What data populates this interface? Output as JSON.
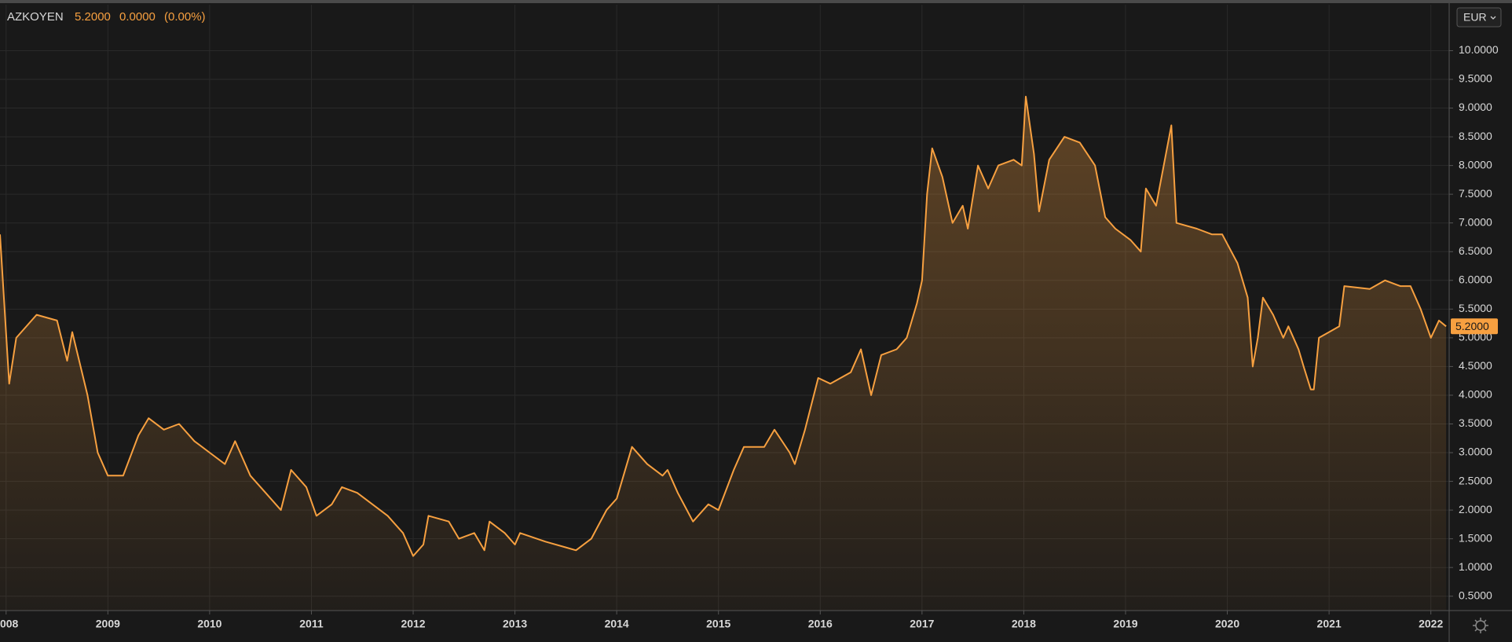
{
  "header": {
    "symbol": "AZKOYEN",
    "price": "5.2000",
    "change": "0.0000",
    "change_pct": "(0.00%)",
    "currency": "EUR"
  },
  "chart_data": {
    "type": "area",
    "color": "#f7a040",
    "grid": true,
    "x": [
      2007.94,
      2008.03,
      2008.1,
      2008.3,
      2008.5,
      2008.6,
      2008.65,
      2008.8,
      2008.9,
      2009.0,
      2009.15,
      2009.3,
      2009.4,
      2009.55,
      2009.7,
      2009.85,
      2010.0,
      2010.15,
      2010.25,
      2010.4,
      2010.55,
      2010.7,
      2010.8,
      2010.95,
      2011.05,
      2011.2,
      2011.3,
      2011.45,
      2011.6,
      2011.75,
      2011.9,
      2012.0,
      2012.1,
      2012.15,
      2012.35,
      2012.45,
      2012.6,
      2012.7,
      2012.75,
      2012.9,
      2013.0,
      2013.05,
      2013.3,
      2013.5,
      2013.6,
      2013.75,
      2013.9,
      2014.0,
      2014.15,
      2014.3,
      2014.45,
      2014.5,
      2014.6,
      2014.75,
      2014.9,
      2015.0,
      2015.15,
      2015.25,
      2015.45,
      2015.55,
      2015.7,
      2015.75,
      2015.85,
      2015.98,
      2016.1,
      2016.3,
      2016.4,
      2016.5,
      2016.6,
      2016.75,
      2016.85,
      2016.95,
      2017.0,
      2017.05,
      2017.1,
      2017.2,
      2017.3,
      2017.4,
      2017.45,
      2017.55,
      2017.65,
      2017.75,
      2017.9,
      2017.98,
      2018.02,
      2018.1,
      2018.15,
      2018.25,
      2018.4,
      2018.55,
      2018.7,
      2018.8,
      2018.9,
      2019.05,
      2019.15,
      2019.2,
      2019.3,
      2019.45,
      2019.5,
      2019.7,
      2019.85,
      2019.95,
      2020.1,
      2020.2,
      2020.25,
      2020.3,
      2020.35,
      2020.45,
      2020.55,
      2020.6,
      2020.7,
      2020.75,
      2020.82,
      2020.85,
      2020.9,
      2021.0,
      2021.1,
      2021.15,
      2021.4,
      2021.55,
      2021.7,
      2021.8,
      2021.9,
      2022.0,
      2022.08,
      2022.15
    ],
    "values": [
      6.8,
      4.2,
      5.0,
      5.4,
      5.3,
      4.6,
      5.1,
      4.0,
      3.0,
      2.6,
      2.6,
      3.3,
      3.6,
      3.4,
      3.5,
      3.2,
      3.0,
      2.8,
      3.2,
      2.6,
      2.3,
      2.0,
      2.7,
      2.4,
      1.9,
      2.1,
      2.4,
      2.3,
      2.1,
      1.9,
      1.6,
      1.2,
      1.4,
      1.9,
      1.8,
      1.5,
      1.6,
      1.3,
      1.8,
      1.6,
      1.4,
      1.6,
      1.45,
      1.35,
      1.3,
      1.5,
      2.0,
      2.2,
      3.1,
      2.8,
      2.6,
      2.7,
      2.3,
      1.8,
      2.1,
      2.0,
      2.7,
      3.1,
      3.1,
      3.4,
      3.0,
      2.8,
      3.4,
      4.3,
      4.2,
      4.4,
      4.8,
      4.0,
      4.7,
      4.8,
      5.0,
      5.6,
      6.0,
      7.5,
      8.3,
      7.8,
      7.0,
      7.3,
      6.9,
      8.0,
      7.6,
      8.0,
      8.1,
      8.0,
      9.2,
      8.2,
      7.2,
      8.1,
      8.5,
      8.4,
      8.0,
      7.1,
      6.9,
      6.7,
      6.5,
      7.6,
      7.3,
      8.7,
      7.0,
      6.9,
      6.8,
      6.8,
      6.3,
      5.7,
      4.5,
      5.0,
      5.7,
      5.4,
      5.0,
      5.2,
      4.8,
      4.5,
      4.1,
      4.1,
      5.0,
      5.1,
      5.2,
      5.9,
      5.85,
      6.0,
      5.9,
      5.9,
      5.5,
      5.0,
      5.3,
      5.2
    ],
    "xlim": [
      2007.94,
      2022.18
    ],
    "xticks": [
      2008,
      2009,
      2010,
      2011,
      2012,
      2013,
      2014,
      2015,
      2016,
      2017,
      2018,
      2019,
      2020,
      2021,
      2022
    ],
    "ylim": [
      0.25,
      10.8
    ],
    "yticks": [
      {
        "value": 0.5,
        "label": "0.5000"
      },
      {
        "value": 1,
        "label": "1.0000"
      },
      {
        "value": 1.5,
        "label": "1.5000"
      },
      {
        "value": 2,
        "label": "2.0000"
      },
      {
        "value": 2.5,
        "label": "2.5000"
      },
      {
        "value": 3,
        "label": "3.0000"
      },
      {
        "value": 3.5,
        "label": "3.5000"
      },
      {
        "value": 4,
        "label": "4.0000"
      },
      {
        "value": 4.5,
        "label": "4.5000"
      },
      {
        "value": 5,
        "label": "5.0000"
      },
      {
        "value": 5.5,
        "label": "5.5000"
      },
      {
        "value": 6,
        "label": "6.0000"
      },
      {
        "value": 6.5,
        "label": "6.5000"
      },
      {
        "value": 7,
        "label": "7.0000"
      },
      {
        "value": 7.5,
        "label": "7.5000"
      },
      {
        "value": 8,
        "label": "8.0000"
      },
      {
        "value": 8.5,
        "label": "8.5000"
      },
      {
        "value": 9,
        "label": "9.0000"
      },
      {
        "value": 9.5,
        "label": "9.5000"
      },
      {
        "value": 10,
        "label": "10.0000"
      }
    ],
    "last_value": {
      "value": 5.2,
      "label": "5.2000"
    }
  }
}
